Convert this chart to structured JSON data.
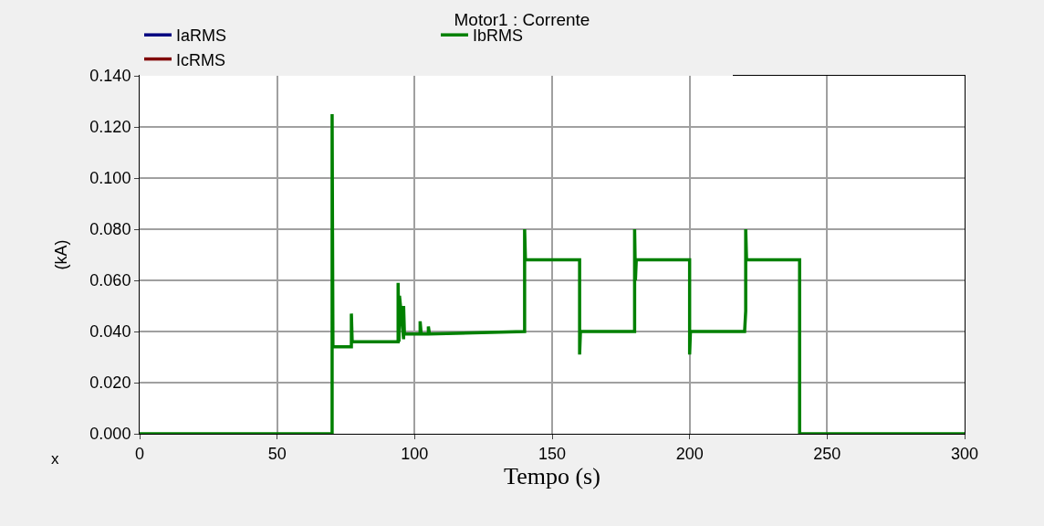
{
  "chart_data": {
    "type": "line",
    "title": "Motor1 : Corrente",
    "xlabel": "Tempo (s)",
    "ylabel": "(kA)",
    "annotations": [
      "x"
    ],
    "x": [
      0,
      70,
      70,
      70.3,
      70.6,
      77,
      77,
      77.3,
      94,
      94,
      94.3,
      94.5,
      96,
      96,
      96.3,
      102,
      102,
      102.4,
      105,
      105,
      105.4,
      140,
      140,
      140.3,
      160,
      160,
      160.3,
      180,
      180,
      180.3,
      180.6,
      200,
      200,
      200.3,
      220,
      220.4,
      220.4,
      220.7,
      240,
      240,
      300
    ],
    "series": [
      {
        "name": "IaRMS",
        "color": "#000080",
        "values": [
          null,
          null,
          null,
          null,
          null,
          null,
          null,
          null,
          null,
          null,
          null,
          null,
          null,
          null,
          null,
          null,
          null,
          null,
          null,
          null,
          null,
          null,
          null,
          null,
          null,
          null,
          null,
          null,
          null,
          null,
          null,
          null,
          null,
          null,
          null,
          null,
          null,
          null,
          null,
          null,
          null
        ]
      },
      {
        "name": "IbRMS",
        "color": "#008000",
        "values": [
          0.0,
          0.0,
          0.125,
          0.034,
          0.034,
          0.034,
          0.047,
          0.036,
          0.036,
          0.059,
          0.036,
          0.054,
          0.037,
          0.05,
          0.039,
          0.039,
          0.044,
          0.039,
          0.039,
          0.042,
          0.039,
          0.04,
          0.08,
          0.068,
          0.068,
          0.031,
          0.04,
          0.04,
          0.08,
          0.06,
          0.068,
          0.068,
          0.031,
          0.04,
          0.04,
          0.048,
          0.08,
          0.068,
          0.068,
          0.0,
          0.0
        ]
      },
      {
        "name": "IcRMS",
        "color": "#800000",
        "values": [
          null,
          null,
          null,
          null,
          null,
          null,
          null,
          null,
          null,
          null,
          null,
          null,
          null,
          null,
          null,
          null,
          null,
          null,
          null,
          null,
          null,
          null,
          null,
          null,
          null,
          null,
          null,
          null,
          null,
          null,
          null,
          null,
          null,
          null,
          null,
          null,
          null,
          null,
          null,
          null,
          null
        ]
      }
    ],
    "xlim": [
      0,
      300
    ],
    "xticks": [
      0,
      50,
      100,
      150,
      200,
      250,
      300
    ],
    "ylim": [
      0,
      0.14
    ],
    "yticks": [
      {
        "value": 0,
        "label": "0.000"
      },
      {
        "value": 0.02,
        "label": "0.020"
      },
      {
        "value": 0.04,
        "label": "0.040"
      },
      {
        "value": 0.06,
        "label": "0.060"
      },
      {
        "value": 0.08,
        "label": "0.080"
      },
      {
        "value": 0.1,
        "label": "0.100"
      },
      {
        "value": 0.12,
        "label": "0.120"
      },
      {
        "value": 0.14,
        "label": "0.140"
      }
    ],
    "grid": true,
    "legend": "top",
    "marker": "none",
    "line_style": "solid"
  }
}
